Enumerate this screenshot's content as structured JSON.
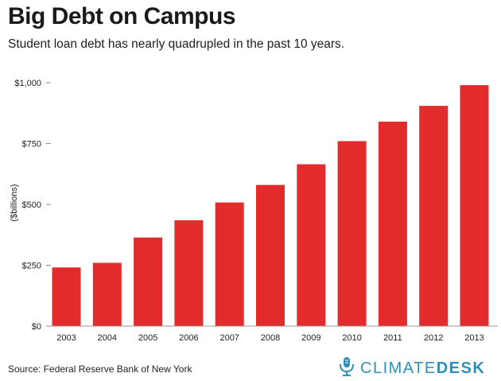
{
  "header": {
    "title": "Big Debt on Campus",
    "subtitle": "Student loan debt has nearly quadrupled in the past 10 years."
  },
  "footer": {
    "source": "Source: Federal Reserve Bank of New York",
    "logo_part1": "CLIMATE",
    "logo_part2": "DESK",
    "logo_icon": "microphone-icon"
  },
  "colors": {
    "bar": "#e32b2b",
    "logo": "#2e8fb8",
    "gridline": "#cccccc"
  },
  "chart_data": {
    "type": "bar",
    "title": "Big Debt on Campus",
    "subtitle": "Student loan debt has nearly quadrupled in the past 10 years.",
    "xlabel": "",
    "ylabel": "($billions)",
    "categories": [
      "2003",
      "2004",
      "2005",
      "2006",
      "2007",
      "2008",
      "2009",
      "2010",
      "2011",
      "2012",
      "2013"
    ],
    "values": [
      241,
      260,
      364,
      435,
      508,
      580,
      665,
      760,
      840,
      905,
      990
    ],
    "ylim": [
      0,
      1000
    ],
    "yticks": [
      0,
      250,
      500,
      750,
      1000
    ],
    "ytick_labels": [
      "$0",
      "$250",
      "$500",
      "$750",
      "$1,000"
    ],
    "grid": false,
    "legend": "none"
  }
}
